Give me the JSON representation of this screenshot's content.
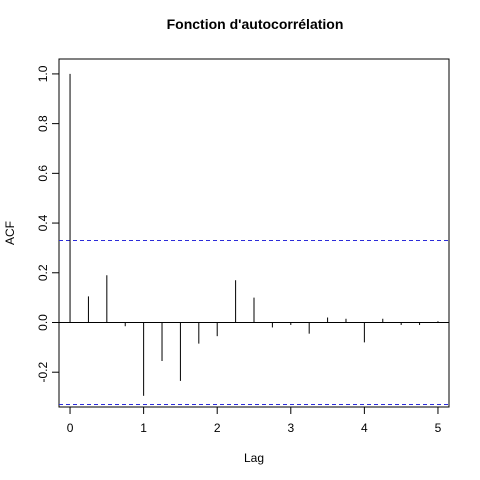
{
  "chart_data": {
    "type": "bar",
    "title": "Fonction d'autocorrélation",
    "xlabel": "Lag",
    "ylabel": "ACF",
    "xlim": [
      -0.15,
      5.15
    ],
    "ylim": [
      -0.34,
      1.06
    ],
    "x_ticks": [
      0,
      1,
      2,
      3,
      4,
      5
    ],
    "y_ticks": [
      -0.2,
      0.0,
      0.2,
      0.4,
      0.6,
      0.8,
      1.0
    ],
    "x_tick_labels": [
      "0",
      "1",
      "2",
      "3",
      "4",
      "5"
    ],
    "y_tick_labels": [
      "-0.2",
      "0.0",
      "0.2",
      "0.4",
      "0.6",
      "0.8",
      "1.0"
    ],
    "confidence_bound": 0.33,
    "confidence_line_color": "#2b2bd9",
    "series": [
      {
        "lags": [
          0,
          0.25,
          0.5,
          0.75,
          1,
          1.25,
          1.5,
          1.75,
          2,
          2.25,
          2.5,
          2.75,
          3,
          3.25,
          3.5,
          3.75,
          4,
          4.25,
          4.5,
          4.75,
          5
        ],
        "values": [
          1.0,
          0.105,
          0.19,
          -0.015,
          -0.295,
          -0.155,
          -0.235,
          -0.085,
          -0.055,
          0.17,
          0.1,
          -0.02,
          -0.01,
          -0.045,
          0.02,
          0.015,
          -0.08,
          0.015,
          -0.01,
          -0.01,
          0.005
        ]
      }
    ]
  }
}
